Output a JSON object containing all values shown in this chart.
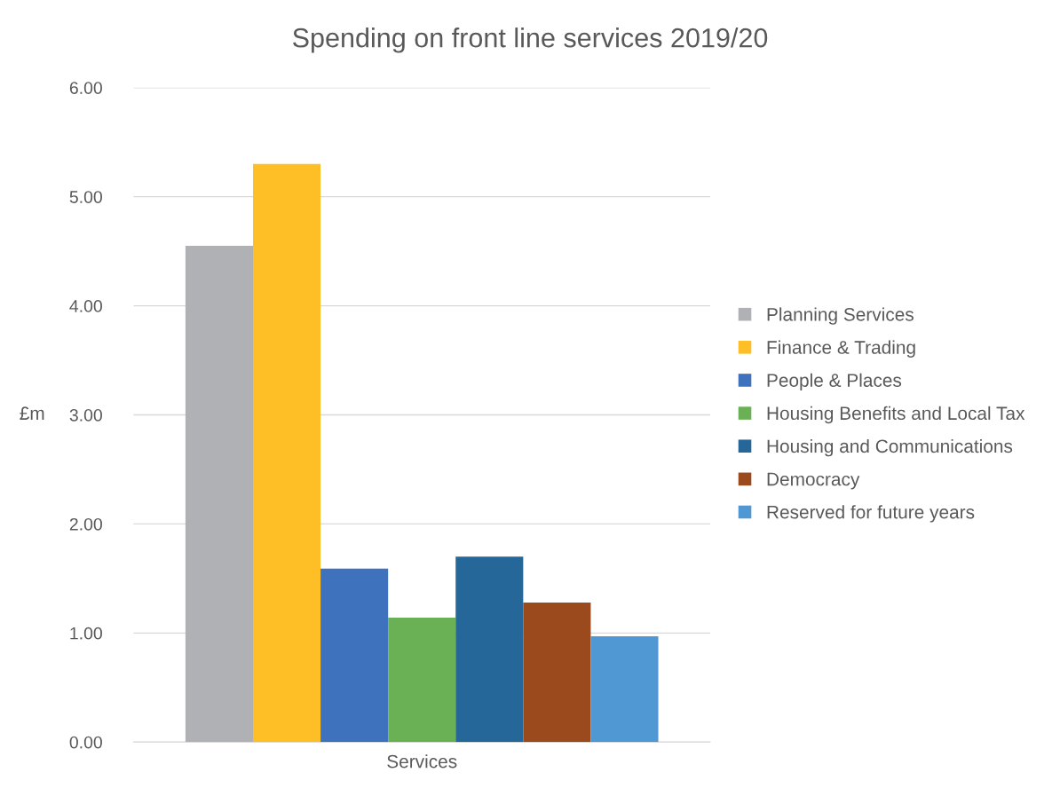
{
  "chart_data": {
    "type": "bar",
    "title": "Spending on front line services 2019/20",
    "ylabel": "£m",
    "categories": [
      "Services"
    ],
    "series": [
      {
        "name": "Planning Services",
        "color": "#b0b1b5",
        "values": [
          4.55
        ]
      },
      {
        "name": "Finance & Trading",
        "color": "#fdbe26",
        "values": [
          5.3
        ]
      },
      {
        "name": "People & Places",
        "color": "#3f72bc",
        "values": [
          1.59
        ]
      },
      {
        "name": "Housing Benefits and Local Tax",
        "color": "#6ab155",
        "values": [
          1.14
        ]
      },
      {
        "name": "Housing and Communications",
        "color": "#26679a",
        "values": [
          1.7
        ]
      },
      {
        "name": "Democracy",
        "color": "#9b4a1d",
        "values": [
          1.28
        ]
      },
      {
        "name": "Reserved for future years",
        "color": "#5098d3",
        "values": [
          0.97
        ]
      }
    ],
    "ylim": [
      0,
      6
    ],
    "yticks": [
      {
        "value": 0,
        "label": "0.00"
      },
      {
        "value": 1,
        "label": "1.00"
      },
      {
        "value": 2,
        "label": "2.00"
      },
      {
        "value": 3,
        "label": "3.00"
      },
      {
        "value": 4,
        "label": "4.00"
      },
      {
        "value": 5,
        "label": "5.00"
      },
      {
        "value": 6,
        "label": "6.00"
      }
    ],
    "grid": "y",
    "legend": "right"
  }
}
